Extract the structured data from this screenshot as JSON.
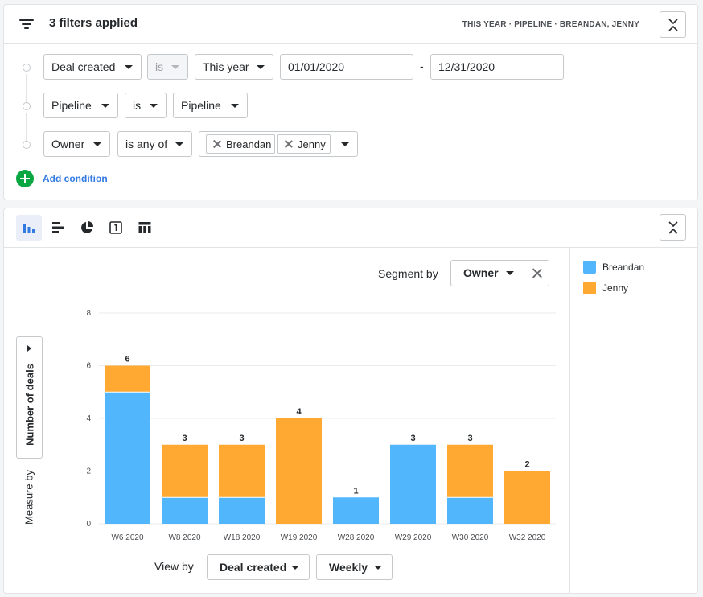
{
  "filters": {
    "title": "3 filters applied",
    "summary": "THIS YEAR  ·  PIPELINE  ·  BREANDAN, JENNY",
    "rows": [
      {
        "field": "Deal created",
        "operator": "is",
        "value": "This year",
        "date_from": "01/01/2020",
        "date_separator": "-",
        "date_to": "12/31/2020"
      },
      {
        "field": "Pipeline",
        "operator": "is",
        "value": "Pipeline"
      },
      {
        "field": "Owner",
        "operator": "is any of",
        "chips": [
          "Breandan",
          "Jenny"
        ]
      }
    ],
    "add_condition": "Add condition"
  },
  "chart_panel": {
    "segment_label": "Segment by",
    "segment_value": "Owner",
    "measure_value": "Number of deals",
    "measure_label": "Measure by",
    "view_label": "View by",
    "view_value": "Deal created",
    "interval_value": "Weekly"
  },
  "colors": {
    "Breandan": "#52b6fc",
    "Jenny": "#ffa933",
    "accent": "#317ae2",
    "green": "#08a742"
  },
  "chart_data": {
    "type": "bar",
    "stacked": true,
    "categories": [
      "W6 2020",
      "W8 2020",
      "W18 2020",
      "W19 2020",
      "W28 2020",
      "W29 2020",
      "W30 2020",
      "W32 2020"
    ],
    "series": [
      {
        "name": "Breandan",
        "values": [
          5,
          1,
          1,
          0,
          1,
          3,
          1,
          0
        ]
      },
      {
        "name": "Jenny",
        "values": [
          1,
          2,
          2,
          4,
          0,
          0,
          2,
          2
        ]
      }
    ],
    "totals": [
      6,
      3,
      3,
      4,
      1,
      3,
      3,
      2
    ],
    "yticks": [
      0,
      2,
      4,
      6,
      8
    ],
    "ylim": [
      0,
      8
    ],
    "ylabel": "Number of deals",
    "xlabel": "Deal created",
    "legend_position": "right"
  }
}
